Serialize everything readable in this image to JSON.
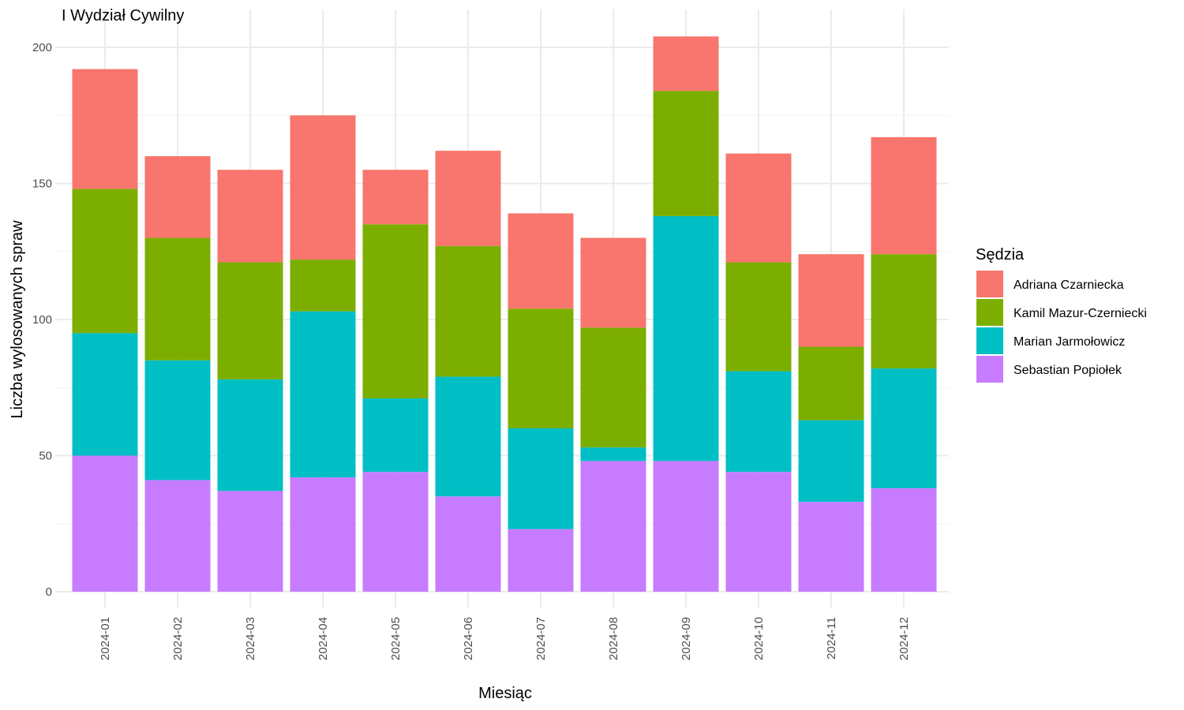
{
  "chart_data": {
    "type": "bar",
    "stacked": true,
    "title": "I Wydział Cywilny",
    "xlabel": "Miesiąc",
    "ylabel": "Liczba wylosowanych spraw",
    "ylim": [
      0,
      210
    ],
    "yticks": [
      0,
      50,
      100,
      150,
      200
    ],
    "grid": true,
    "legend_title": "Sędzia",
    "legend_position": "right",
    "categories": [
      "2024-01",
      "2024-02",
      "2024-03",
      "2024-04",
      "2024-05",
      "2024-06",
      "2024-07",
      "2024-08",
      "2024-09",
      "2024-10",
      "2024-11",
      "2024-12"
    ],
    "series": [
      {
        "name": "Sebastian Popiołek",
        "color": "#C77CFF",
        "values": [
          50,
          41,
          37,
          42,
          44,
          35,
          23,
          48,
          48,
          44,
          33,
          38
        ]
      },
      {
        "name": "Marian Jarmołowicz",
        "color": "#00BFC4",
        "values": [
          45,
          44,
          41,
          61,
          27,
          44,
          37,
          5,
          90,
          37,
          30,
          44
        ]
      },
      {
        "name": "Kamil Mazur-Czerniecki",
        "color": "#7CAE00",
        "values": [
          53,
          45,
          43,
          19,
          64,
          48,
          44,
          44,
          46,
          40,
          27,
          42
        ]
      },
      {
        "name": "Adriana Czarniecka",
        "color": "#F8766D",
        "values": [
          44,
          30,
          34,
          53,
          20,
          35,
          35,
          33,
          20,
          40,
          34,
          43
        ]
      }
    ],
    "legend_order": [
      "Adriana Czarniecka",
      "Kamil Mazur-Czerniecki",
      "Marian Jarmołowicz",
      "Sebastian Popiołek"
    ]
  }
}
